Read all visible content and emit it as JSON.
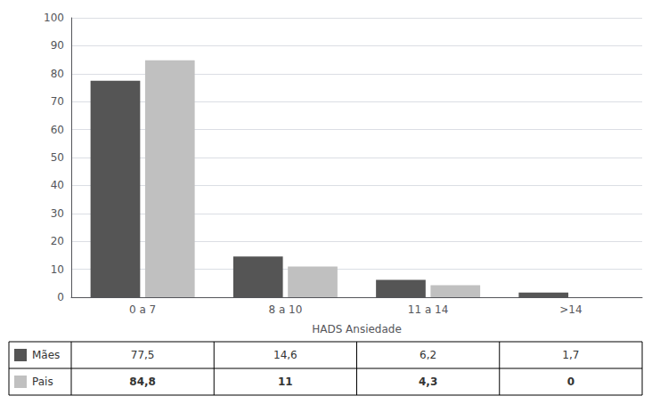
{
  "chart_data": {
    "type": "bar",
    "xlabel": "HADS Ansiedade",
    "categories": [
      "0 a 7",
      "8 a 10",
      "11 a 14",
      ">14"
    ],
    "series": [
      {
        "name": "Mães",
        "color": "#555555",
        "values": [
          77.5,
          14.6,
          6.2,
          1.7
        ],
        "value_labels": [
          "77,5",
          "14,6",
          "6,2",
          "1,7"
        ]
      },
      {
        "name": "Pais",
        "color": "#c0c0c0",
        "values": [
          84.8,
          11,
          4.3,
          0
        ],
        "value_labels": [
          "84,8",
          "11",
          "4,3",
          "0"
        ]
      }
    ],
    "ylim": [
      0,
      100
    ],
    "yticks": [
      0,
      10,
      20,
      30,
      40,
      50,
      60,
      70,
      80,
      90,
      100
    ],
    "grid": true
  }
}
